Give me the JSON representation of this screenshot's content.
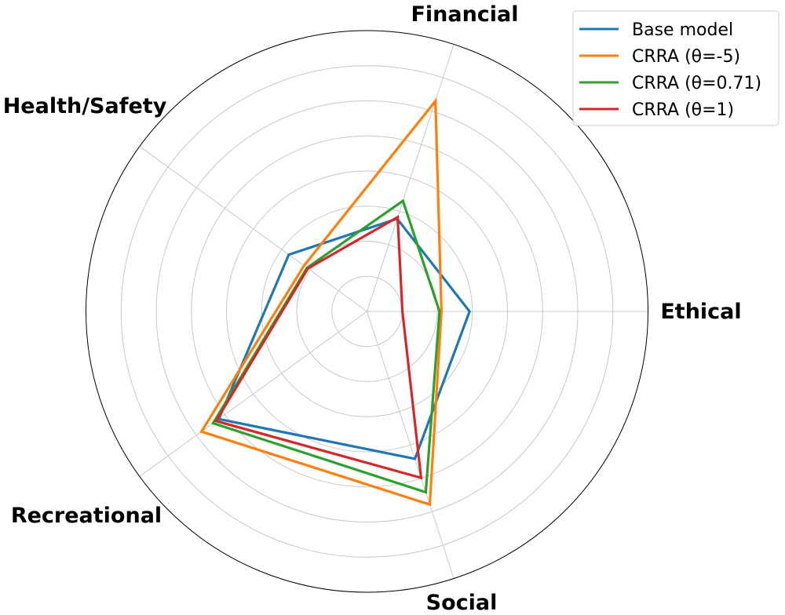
{
  "chart_data": {
    "type": "radar",
    "categories": [
      "Ethical",
      "Financial",
      "Health/Safety",
      "Recreational",
      "Social"
    ],
    "rlim": [
      0,
      1
    ],
    "grid": true,
    "radial_gridlines": 8,
    "legend_position": "top-right",
    "series": [
      {
        "name": "Base model",
        "color": "#1f77b4",
        "values": [
          0.365,
          0.347,
          0.344,
          0.652,
          0.552
        ]
      },
      {
        "name": "CRRA (θ=-5)",
        "color": "#ff7f0e",
        "values": [
          0.265,
          0.788,
          0.277,
          0.728,
          0.723
        ]
      },
      {
        "name": "CRRA (θ=0.71)",
        "color": "#2ca02c",
        "values": [
          0.258,
          0.414,
          0.264,
          0.677,
          0.677
        ]
      },
      {
        "name": "CRRA (θ=1)",
        "color": "#d62728",
        "values": [
          0.126,
          0.353,
          0.26,
          0.664,
          0.623
        ]
      }
    ]
  }
}
